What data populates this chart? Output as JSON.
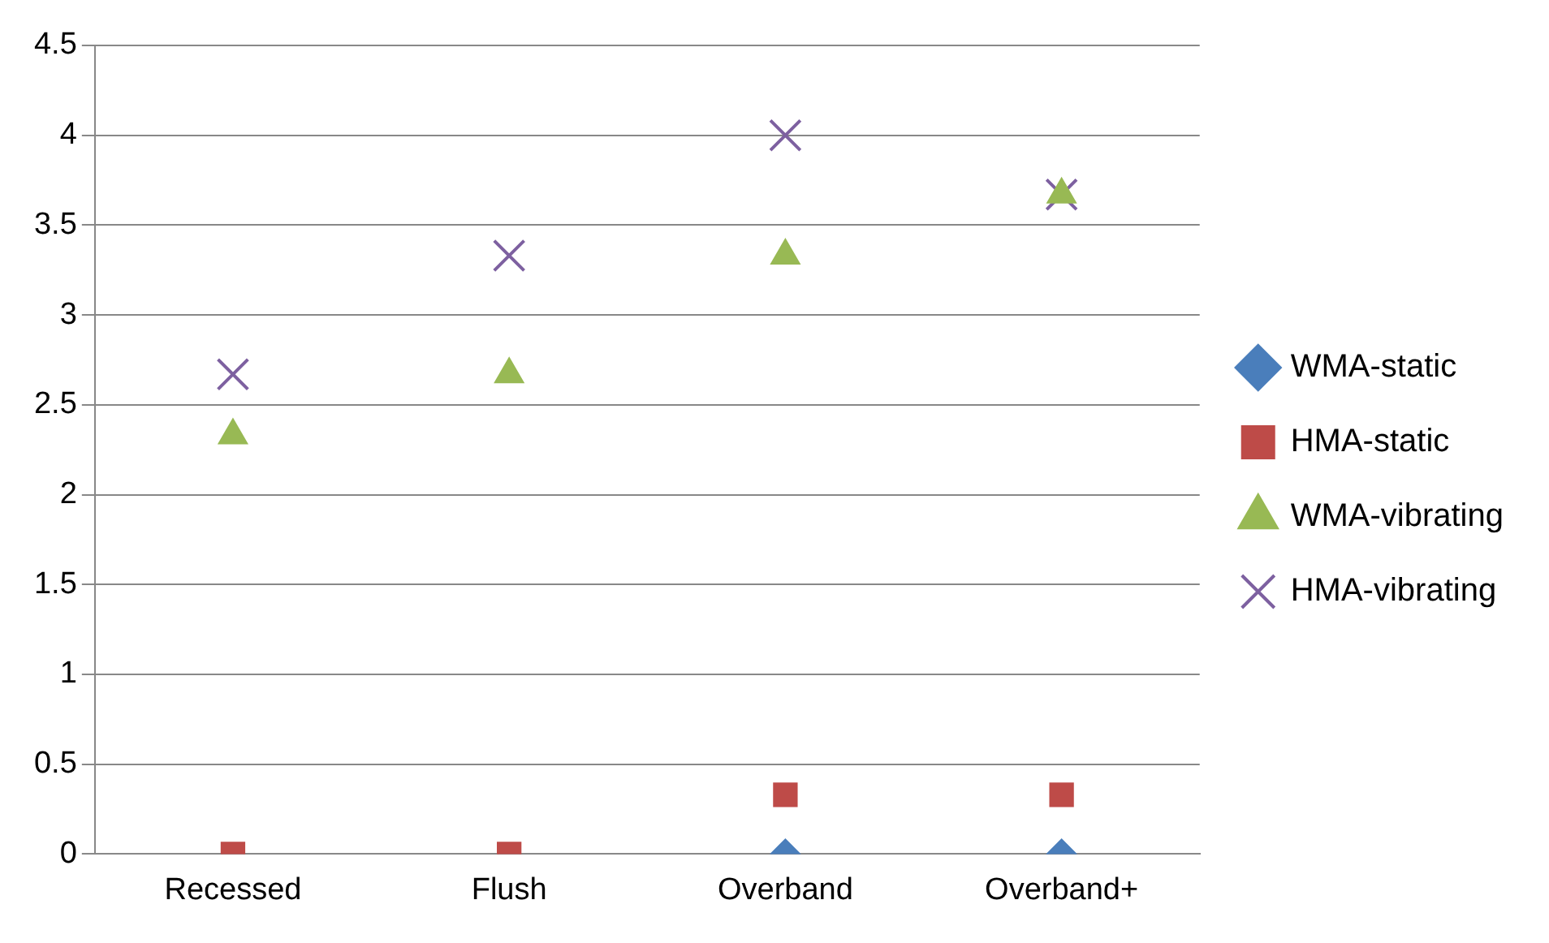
{
  "chart_data": {
    "type": "scatter",
    "categories": [
      "Recessed",
      "Flush",
      "Overband",
      "Overband+"
    ],
    "series": [
      {
        "name": "WMA-static",
        "color": "#4a7ebb",
        "marker": "diamond",
        "values": [
          null,
          null,
          0,
          0
        ]
      },
      {
        "name": "HMA-static",
        "color": "#be4b48",
        "marker": "square",
        "values": [
          0,
          0,
          0.33,
          0.33
        ]
      },
      {
        "name": "WMA-vibrating",
        "color": "#98b954",
        "marker": "triangle",
        "values": [
          2.33,
          2.67,
          3.33,
          3.67
        ]
      },
      {
        "name": "HMA-vibrating",
        "color": "#7d60a0",
        "marker": "cross",
        "values": [
          2.67,
          3.33,
          4,
          3.67
        ]
      }
    ],
    "ylim": [
      0,
      4.5
    ],
    "yticks": [
      0,
      0.5,
      1,
      1.5,
      2,
      2.5,
      3,
      3.5,
      4,
      4.5
    ],
    "grid": "y",
    "legend": "right"
  }
}
